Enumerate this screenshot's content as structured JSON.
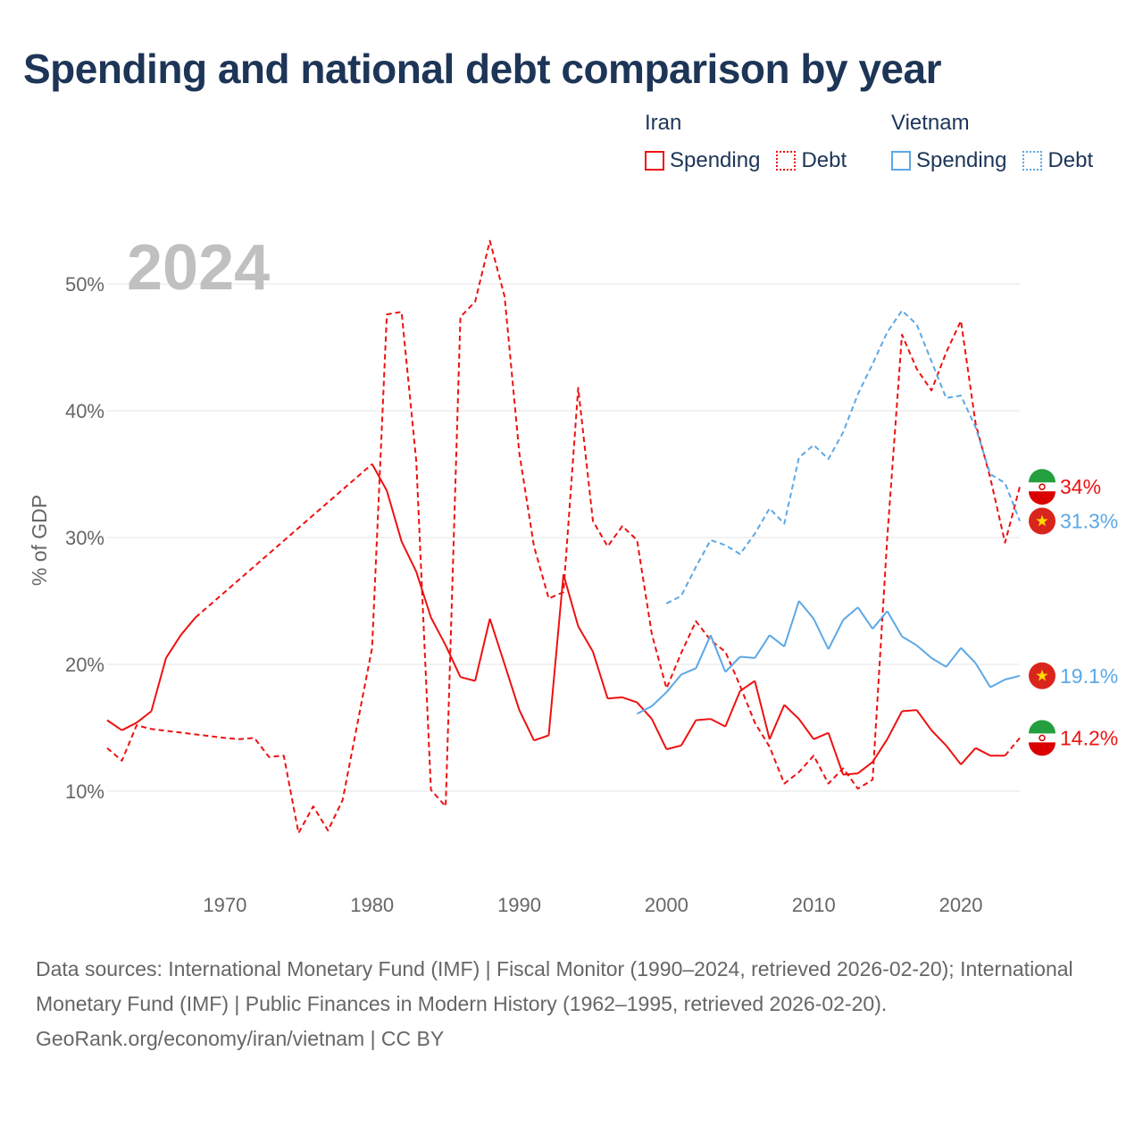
{
  "title": "Spending and national debt comparison by year",
  "legend": {
    "groups": [
      {
        "name": "Iran",
        "items": [
          {
            "label": "Spending",
            "style": "solid"
          },
          {
            "label": "Debt",
            "style": "dotted"
          }
        ]
      },
      {
        "name": "Vietnam",
        "items": [
          {
            "label": "Spending",
            "style": "solid"
          },
          {
            "label": "Debt",
            "style": "dotted"
          }
        ]
      }
    ]
  },
  "colors": {
    "iran": "#ee1111",
    "vietnam": "#5ca8e6",
    "year_watermark": "#c0c0c0",
    "grid": "#e6e6e6",
    "axis_text": "#666666",
    "title": "#1d3557"
  },
  "chart_data": {
    "type": "line",
    "year_label": "2024",
    "ylabel": "% of GDP",
    "xlim": [
      1962,
      2024
    ],
    "ylim": [
      3,
      55
    ],
    "x_ticks": [
      1970,
      1980,
      1990,
      2000,
      2010,
      2020
    ],
    "y_ticks": [
      10,
      20,
      30,
      40,
      50
    ],
    "y_tick_labels": [
      "10%",
      "20%",
      "30%",
      "40%",
      "50%"
    ],
    "series": [
      {
        "name": "Iran Spending",
        "country": "Iran",
        "kind": "spending",
        "color_key": "iran",
        "end_label": "14.2%",
        "points": [
          [
            1962,
            15.6
          ],
          [
            1963,
            14.8
          ],
          [
            1964,
            15.4
          ],
          [
            1965,
            16.3
          ],
          [
            1966,
            20.5
          ],
          [
            1967,
            22.3
          ],
          [
            1968,
            23.7
          ],
          [
            1980,
            35.8
          ],
          [
            1981,
            33.7
          ],
          [
            1982,
            29.7
          ],
          [
            1983,
            27.3
          ],
          [
            1984,
            23.7
          ],
          [
            1985,
            21.5
          ],
          [
            1986,
            19.0
          ],
          [
            1987,
            18.7
          ],
          [
            1988,
            23.6
          ],
          [
            1989,
            20.0
          ],
          [
            1990,
            16.4
          ],
          [
            1991,
            14.0
          ],
          [
            1992,
            14.4
          ],
          [
            1993,
            27.1
          ],
          [
            1994,
            23.0
          ],
          [
            1995,
            21.0
          ],
          [
            1996,
            17.3
          ],
          [
            1997,
            17.4
          ],
          [
            1998,
            17.0
          ],
          [
            1999,
            15.7
          ],
          [
            2000,
            13.3
          ],
          [
            2001,
            13.6
          ],
          [
            2002,
            15.6
          ],
          [
            2003,
            15.7
          ],
          [
            2004,
            15.1
          ],
          [
            2005,
            17.9
          ],
          [
            2006,
            18.7
          ],
          [
            2007,
            14.1
          ],
          [
            2008,
            16.8
          ],
          [
            2009,
            15.7
          ],
          [
            2010,
            14.1
          ],
          [
            2011,
            14.6
          ],
          [
            2012,
            11.3
          ],
          [
            2013,
            11.4
          ],
          [
            2014,
            12.3
          ],
          [
            2015,
            14.1
          ],
          [
            2016,
            16.3
          ],
          [
            2017,
            16.4
          ],
          [
            2018,
            14.8
          ],
          [
            2019,
            13.6
          ],
          [
            2020,
            12.1
          ],
          [
            2021,
            13.4
          ],
          [
            2022,
            12.8
          ],
          [
            2023,
            12.8
          ],
          [
            2024,
            14.2
          ]
        ],
        "gaps": [
          [
            1968,
            1980
          ],
          [
            2023,
            2024
          ]
        ]
      },
      {
        "name": "Iran Debt",
        "country": "Iran",
        "kind": "debt",
        "color_key": "iran",
        "end_label": "34%",
        "points": [
          [
            1962,
            13.4
          ],
          [
            1963,
            12.4
          ],
          [
            1964,
            15.2
          ],
          [
            1965,
            14.9
          ],
          [
            1970,
            14.2
          ],
          [
            1971,
            14.1
          ],
          [
            1972,
            14.2
          ],
          [
            1973,
            12.7
          ],
          [
            1974,
            12.8
          ],
          [
            1975,
            6.7
          ],
          [
            1976,
            8.8
          ],
          [
            1977,
            6.9
          ],
          [
            1978,
            9.3
          ],
          [
            1980,
            21.3
          ],
          [
            1981,
            47.6
          ],
          [
            1982,
            47.8
          ],
          [
            1983,
            36.0
          ],
          [
            1984,
            10.1
          ],
          [
            1985,
            8.8
          ],
          [
            1986,
            47.4
          ],
          [
            1987,
            48.6
          ],
          [
            1988,
            53.4
          ],
          [
            1989,
            49.0
          ],
          [
            1990,
            36.7
          ],
          [
            1991,
            29.3
          ],
          [
            1992,
            25.2
          ],
          [
            1993,
            25.7
          ],
          [
            1994,
            41.8
          ],
          [
            1995,
            31.3
          ],
          [
            1996,
            29.3
          ],
          [
            1997,
            30.9
          ],
          [
            1998,
            29.8
          ],
          [
            1999,
            22.4
          ],
          [
            2000,
            18.1
          ],
          [
            2001,
            20.9
          ],
          [
            2002,
            23.4
          ],
          [
            2003,
            21.9
          ],
          [
            2004,
            21.0
          ],
          [
            2005,
            18.3
          ],
          [
            2006,
            15.4
          ],
          [
            2007,
            13.5
          ],
          [
            2008,
            10.6
          ],
          [
            2009,
            11.5
          ],
          [
            2010,
            12.8
          ],
          [
            2011,
            10.6
          ],
          [
            2012,
            11.8
          ],
          [
            2013,
            10.2
          ],
          [
            2014,
            10.9
          ],
          [
            2015,
            30.0
          ],
          [
            2016,
            46.0
          ],
          [
            2017,
            43.3
          ],
          [
            2018,
            41.6
          ],
          [
            2019,
            44.6
          ],
          [
            2020,
            47.1
          ],
          [
            2021,
            39.0
          ],
          [
            2022,
            34.7
          ],
          [
            2023,
            29.6
          ],
          [
            2024,
            34.0
          ]
        ]
      },
      {
        "name": "Vietnam Spending",
        "country": "Vietnam",
        "kind": "spending",
        "color_key": "vietnam",
        "end_label": "19.1%",
        "points": [
          [
            1998,
            16.1
          ],
          [
            1999,
            16.7
          ],
          [
            2000,
            17.8
          ],
          [
            2001,
            19.2
          ],
          [
            2002,
            19.7
          ],
          [
            2003,
            22.3
          ],
          [
            2004,
            19.4
          ],
          [
            2005,
            20.6
          ],
          [
            2006,
            20.5
          ],
          [
            2007,
            22.3
          ],
          [
            2008,
            21.4
          ],
          [
            2009,
            25.0
          ],
          [
            2010,
            23.6
          ],
          [
            2011,
            21.2
          ],
          [
            2012,
            23.5
          ],
          [
            2013,
            24.5
          ],
          [
            2014,
            22.8
          ],
          [
            2015,
            24.2
          ],
          [
            2016,
            22.2
          ],
          [
            2017,
            21.5
          ],
          [
            2018,
            20.5
          ],
          [
            2019,
            19.8
          ],
          [
            2020,
            21.3
          ],
          [
            2021,
            20.1
          ],
          [
            2022,
            18.2
          ],
          [
            2023,
            18.8
          ],
          [
            2024,
            19.1
          ]
        ],
        "gaps": []
      },
      {
        "name": "Vietnam Debt",
        "country": "Vietnam",
        "kind": "debt",
        "color_key": "vietnam",
        "end_label": "31.3%",
        "points": [
          [
            2000,
            24.8
          ],
          [
            2001,
            25.4
          ],
          [
            2002,
            27.7
          ],
          [
            2003,
            29.8
          ],
          [
            2004,
            29.4
          ],
          [
            2005,
            28.7
          ],
          [
            2006,
            30.3
          ],
          [
            2007,
            32.3
          ],
          [
            2008,
            31.1
          ],
          [
            2009,
            36.3
          ],
          [
            2010,
            37.3
          ],
          [
            2011,
            36.2
          ],
          [
            2012,
            38.3
          ],
          [
            2013,
            41.3
          ],
          [
            2014,
            43.7
          ],
          [
            2015,
            46.2
          ],
          [
            2016,
            47.9
          ],
          [
            2017,
            46.8
          ],
          [
            2018,
            43.9
          ],
          [
            2019,
            41.0
          ],
          [
            2020,
            41.2
          ],
          [
            2021,
            38.7
          ],
          [
            2022,
            35.0
          ],
          [
            2023,
            34.3
          ],
          [
            2024,
            31.3
          ]
        ]
      }
    ]
  },
  "footer": {
    "sources": "Data sources: International Monetary Fund (IMF) | Fiscal Monitor (1990–2024, retrieved 2026-02-20); International Monetary Fund (IMF) | Public Finances in Modern History (1962–1995, retrieved 2026-02-20).",
    "credit": "GeoRank.org/economy/iran/vietnam | CC BY"
  }
}
